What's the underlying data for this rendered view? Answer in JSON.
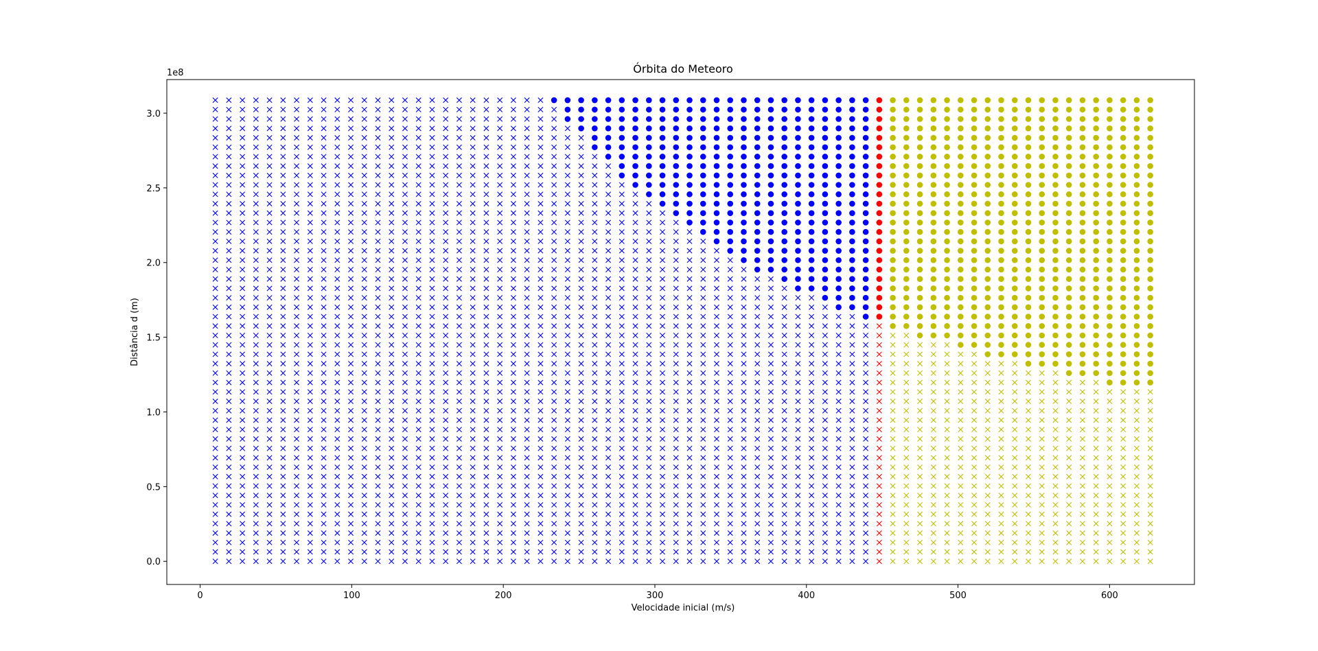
{
  "chart_data": {
    "type": "scatter",
    "title": "Órbita do Meteoro",
    "xlabel": "Velocidade inicial (m/s)",
    "ylabel": "Distância d (m)",
    "y_offset_text": "1e8",
    "xlim": [
      -22,
      656
    ],
    "ylim": [
      -0.155,
      3.225
    ],
    "x_ticks": [
      0,
      100,
      200,
      300,
      400,
      500,
      600
    ],
    "x_tick_labels": [
      "0",
      "100",
      "200",
      "300",
      "400",
      "500",
      "600"
    ],
    "y_ticks": [
      0.0,
      0.5,
      1.0,
      1.5,
      2.0,
      2.5,
      3.0
    ],
    "y_tick_labels": [
      "0.0",
      "0.5",
      "1.0",
      "1.5",
      "2.0",
      "2.5",
      "3.0"
    ],
    "grid": false,
    "legend": "none",
    "velocity_grid": {
      "start": 10,
      "step": 8.94,
      "count": 70
    },
    "distance_grid": {
      "start": 0.0,
      "step": 0.063,
      "count": 50
    },
    "groups": [
      {
        "color": "#0000ff",
        "velocity_from": 10,
        "velocity_to": 438,
        "upper_marker": "o",
        "lower_marker": "x",
        "threshold": [
          {
            "velocity": 233,
            "distance": 3.087
          },
          {
            "velocity": 242,
            "distance": 2.961
          },
          {
            "velocity": 251,
            "distance": 2.898
          },
          {
            "velocity": 260,
            "distance": 2.772
          },
          {
            "velocity": 269,
            "distance": 2.709
          },
          {
            "velocity": 278,
            "distance": 2.583
          },
          {
            "velocity": 287,
            "distance": 2.52
          },
          {
            "velocity": 296,
            "distance": 2.457
          },
          {
            "velocity": 304,
            "distance": 2.394
          },
          {
            "velocity": 313,
            "distance": 2.331
          },
          {
            "velocity": 322,
            "distance": 2.268
          },
          {
            "velocity": 331,
            "distance": 2.205
          },
          {
            "velocity": 340,
            "distance": 2.142
          },
          {
            "velocity": 349,
            "distance": 2.079
          },
          {
            "velocity": 358,
            "distance": 2.016
          },
          {
            "velocity": 367,
            "distance": 1.953
          },
          {
            "velocity": 376,
            "distance": 1.953
          },
          {
            "velocity": 385,
            "distance": 1.89
          },
          {
            "velocity": 394,
            "distance": 1.827
          },
          {
            "velocity": 402,
            "distance": 1.827
          },
          {
            "velocity": 411,
            "distance": 1.764
          },
          {
            "velocity": 420,
            "distance": 1.701
          },
          {
            "velocity": 429,
            "distance": 1.701
          },
          {
            "velocity": 438,
            "distance": 1.638
          }
        ]
      },
      {
        "color": "#ff0000",
        "velocity_from": 447,
        "velocity_to": 447,
        "upper_marker": "o",
        "lower_marker": "x",
        "threshold": [
          {
            "velocity": 447,
            "distance": 1.638
          }
        ]
      },
      {
        "color": "#bfbf00",
        "velocity_from": 456,
        "velocity_to": 626,
        "upper_marker": "o",
        "lower_marker": "x",
        "threshold": [
          {
            "velocity": 456,
            "distance": 1.575
          },
          {
            "velocity": 465,
            "distance": 1.575
          },
          {
            "velocity": 474,
            "distance": 1.512
          },
          {
            "velocity": 483,
            "distance": 1.512
          },
          {
            "velocity": 492,
            "distance": 1.512
          },
          {
            "velocity": 500,
            "distance": 1.449
          },
          {
            "velocity": 509,
            "distance": 1.449
          },
          {
            "velocity": 518,
            "distance": 1.386
          },
          {
            "velocity": 527,
            "distance": 1.386
          },
          {
            "velocity": 536,
            "distance": 1.386
          },
          {
            "velocity": 545,
            "distance": 1.323
          },
          {
            "velocity": 554,
            "distance": 1.323
          },
          {
            "velocity": 563,
            "distance": 1.323
          },
          {
            "velocity": 572,
            "distance": 1.26
          },
          {
            "velocity": 581,
            "distance": 1.26
          },
          {
            "velocity": 590,
            "distance": 1.26
          },
          {
            "velocity": 599,
            "distance": 1.197
          },
          {
            "velocity": 608,
            "distance": 1.197
          },
          {
            "velocity": 617,
            "distance": 1.197
          },
          {
            "velocity": 626,
            "distance": 1.197
          }
        ]
      }
    ]
  }
}
